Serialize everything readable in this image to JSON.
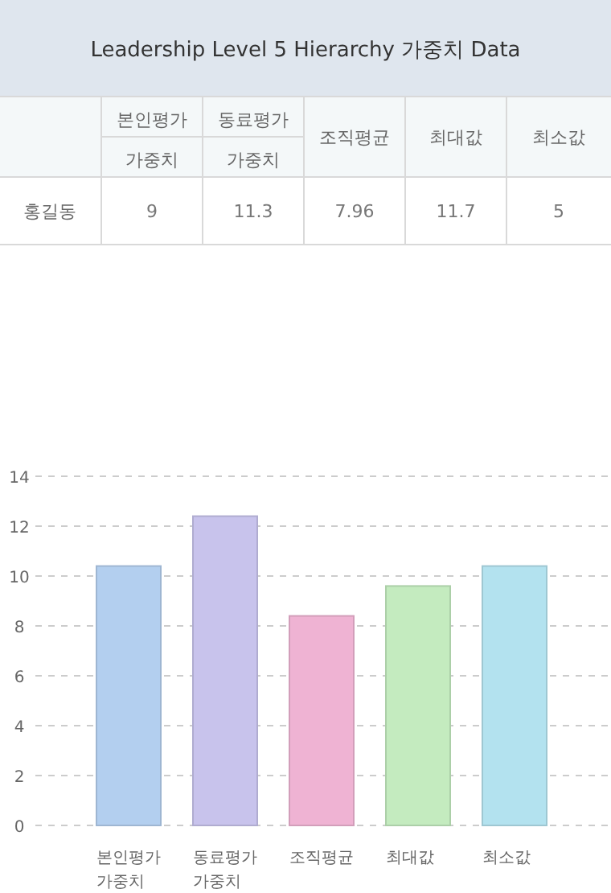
{
  "chart_data": [
    {
      "type": "heatmap",
      "title": "Leadership Level 5 Hierarchy 가중치 Data",
      "categories": [
        "본인평가\n가중치",
        "동료평가\n가중치",
        "조직평균",
        "최대값",
        "최소값"
      ],
      "y_categories": [
        "홍길동"
      ],
      "cells": [
        [
          9,
          11.3,
          7.96,
          11.7,
          5
        ]
      ],
      "data_labels": true
    },
    {
      "type": "bar",
      "categories": [
        "본인평가\n가중치",
        "동료평가\n가중치",
        "조직평균",
        "최대값",
        "최소값"
      ],
      "values": [
        10.4,
        12.4,
        8.4,
        9.6,
        10.4
      ],
      "colors": [
        "#b3cfef",
        "#c8c3ec",
        "#efb3d3",
        "#c4ebbf",
        "#b3e2ef"
      ],
      "ylim": [
        0,
        14
      ],
      "yticks": [
        0,
        2,
        4,
        6,
        8,
        10,
        12,
        14
      ],
      "grid": "y"
    }
  ]
}
